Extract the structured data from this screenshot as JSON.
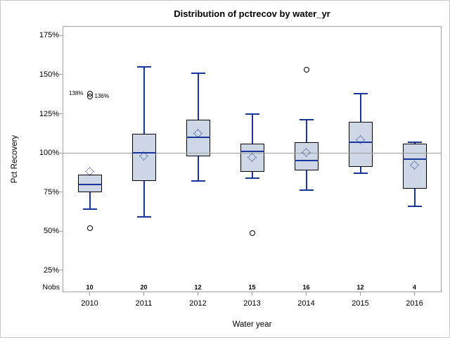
{
  "chart_data": {
    "type": "box",
    "title": "Distribution of pctrecov by water_yr",
    "xlabel": "Water year",
    "ylabel": "Pct Recovery",
    "nobs_label": "Nobs",
    "y_ticks": [
      175,
      150,
      125,
      100,
      75,
      50,
      25
    ],
    "y_tick_suffix": "%",
    "ylim": [
      11,
      181
    ],
    "reference_line": 100,
    "grid": "horizontal reference line at 100% only",
    "legend": "none",
    "categories": [
      "2010",
      "2011",
      "2012",
      "2013",
      "2014",
      "2015",
      "2016"
    ],
    "nobs": [
      "10",
      "20",
      "12",
      "15",
      "16",
      "12",
      "4"
    ],
    "series": [
      {
        "category": "2010",
        "whisker_low": 64,
        "q1": 75,
        "median": 80,
        "q3": 86,
        "whisker_high": 86,
        "mean": 88,
        "outliers": [
          52
        ],
        "labeled_outliers": [
          {
            "value": 138,
            "label": "138%",
            "side": "left"
          },
          {
            "value": 136,
            "label": "136%",
            "side": "right"
          }
        ]
      },
      {
        "category": "2011",
        "whisker_low": 59,
        "q1": 82,
        "median": 100,
        "q3": 112,
        "whisker_high": 155,
        "mean": 98,
        "outliers": [],
        "labeled_outliers": []
      },
      {
        "category": "2012",
        "whisker_low": 82,
        "q1": 98,
        "median": 110,
        "q3": 121,
        "whisker_high": 151,
        "mean": 112,
        "outliers": [],
        "labeled_outliers": []
      },
      {
        "category": "2013",
        "whisker_low": 84,
        "q1": 88,
        "median": 101,
        "q3": 106,
        "whisker_high": 125,
        "mean": 97,
        "outliers": [
          49
        ],
        "labeled_outliers": []
      },
      {
        "category": "2014",
        "whisker_low": 76,
        "q1": 89,
        "median": 95,
        "q3": 107,
        "whisker_high": 121,
        "mean": 100,
        "outliers": [
          153
        ],
        "labeled_outliers": []
      },
      {
        "category": "2015",
        "whisker_low": 87,
        "q1": 91,
        "median": 107,
        "q3": 120,
        "whisker_high": 138,
        "mean": 108,
        "outliers": [],
        "labeled_outliers": []
      },
      {
        "category": "2016",
        "whisker_low": 66,
        "q1": 77,
        "median": 96,
        "q3": 106,
        "whisker_high": 107,
        "mean": 92,
        "outliers": [],
        "labeled_outliers": []
      }
    ],
    "colors": {
      "box_fill": "#cdd7e6",
      "box_border": "#000000",
      "line_blue": "#1a369c",
      "reference_gray": "#9d9d9d",
      "frame_gray": "#9aa3a9",
      "outer_border": "#c9c9c9",
      "text": "#000000"
    }
  }
}
